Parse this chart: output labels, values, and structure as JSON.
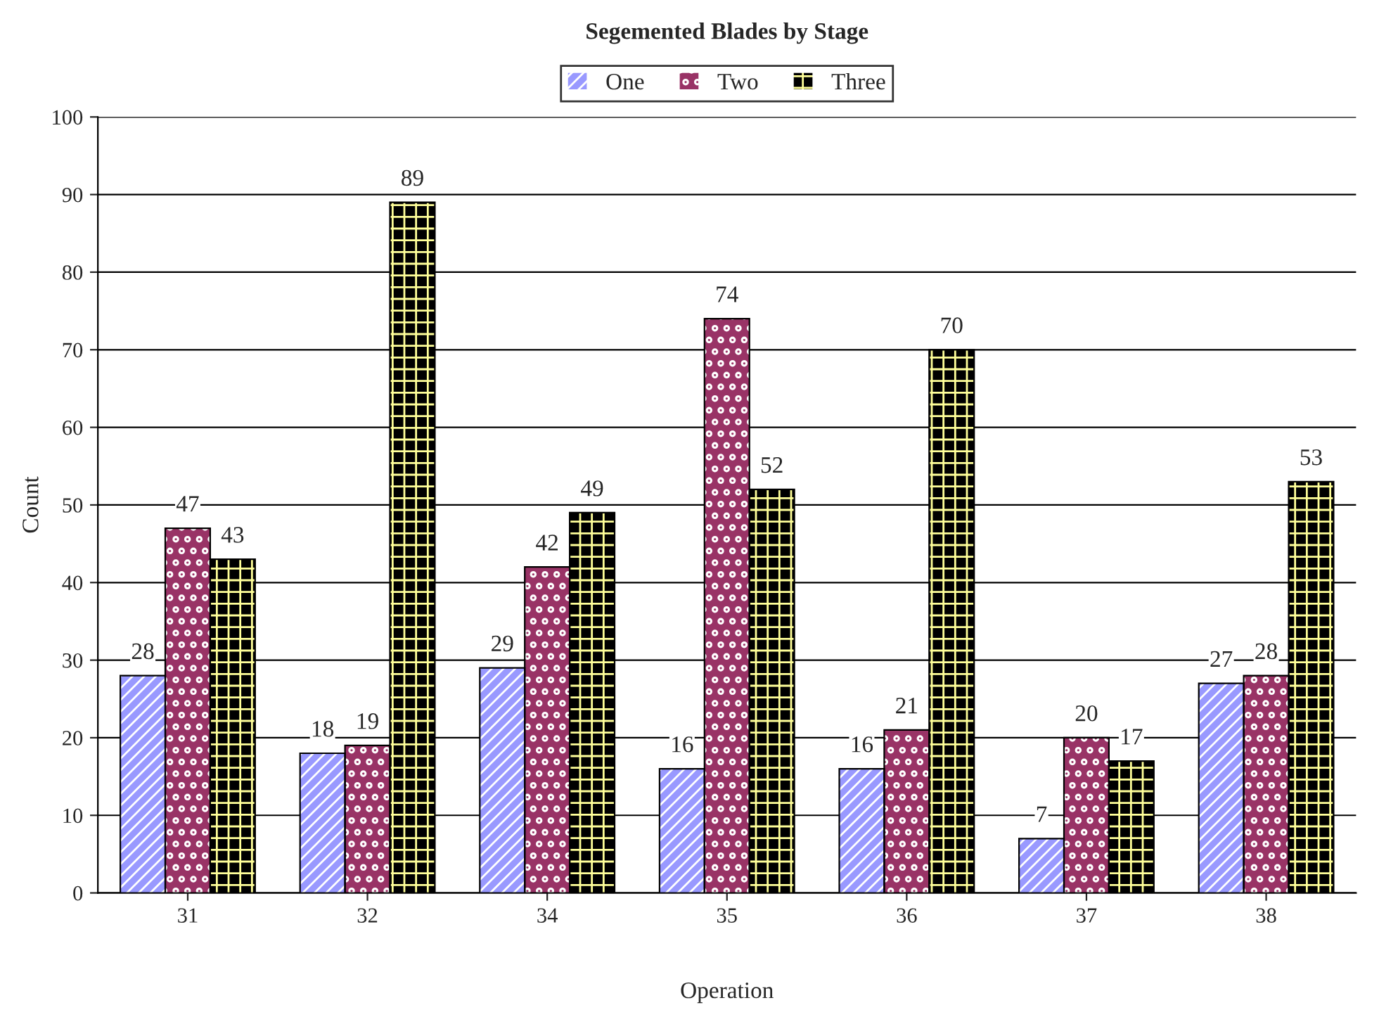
{
  "chart_data": {
    "type": "bar",
    "title": "Segemented Blades by Stage",
    "xlabel": "Operation",
    "ylabel": "Count",
    "categories": [
      "31",
      "32",
      "34",
      "35",
      "36",
      "37",
      "38"
    ],
    "series": [
      {
        "name": "One",
        "color": "#9999ff",
        "values": [
          28,
          18,
          29,
          16,
          16,
          7,
          27
        ]
      },
      {
        "name": "Two",
        "color": "#993366",
        "values": [
          47,
          19,
          42,
          74,
          21,
          20,
          28
        ]
      },
      {
        "name": "Three",
        "color": "#000000",
        "values": [
          43,
          89,
          49,
          52,
          70,
          17,
          53
        ]
      }
    ],
    "ylim": [
      0,
      100
    ],
    "yticks": [
      0,
      10,
      20,
      30,
      40,
      50,
      60,
      70,
      80,
      90,
      100
    ],
    "grid": "y",
    "legend": "top",
    "data_labels": true
  }
}
